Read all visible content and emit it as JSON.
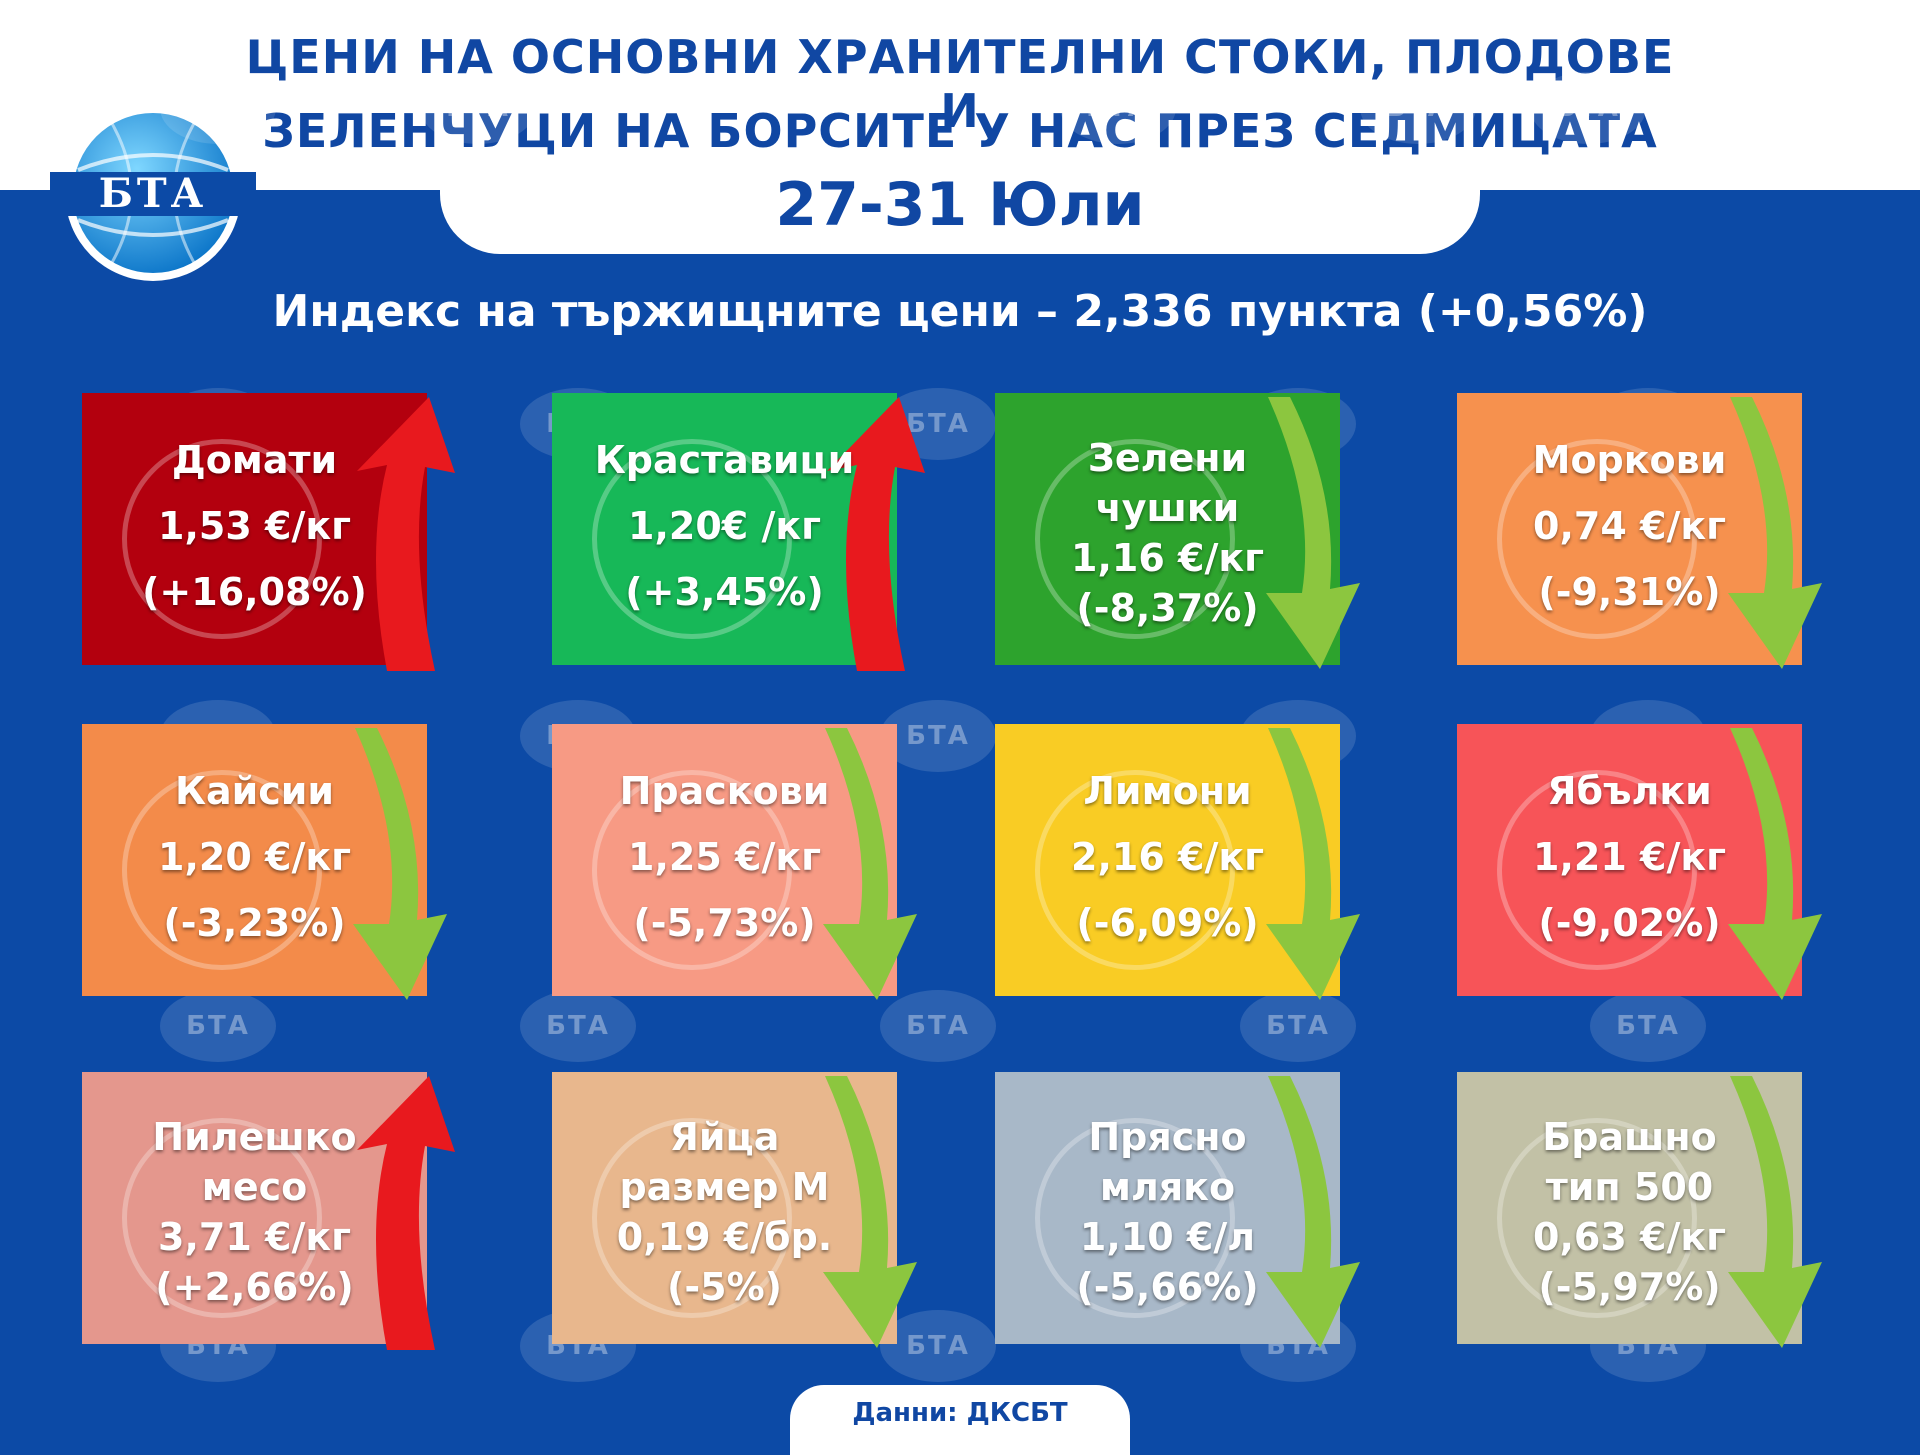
{
  "header": {
    "title_line1": "ЦЕНИ НА ОСНОВНИ ХРАНИТЕЛНИ СТОКИ, ПЛОДОВЕ И",
    "title_line2": "ЗЕЛЕНЧУЦИ НА БОРСИТЕ У НАС ПРЕЗ СЕДМИЦАТА",
    "date": "27-31 Юли",
    "logo_text": "БТА",
    "index": "Индекс на тържищните цени – 2,336 пункта (+0,56%)"
  },
  "watermark": "БТА",
  "source": "Данни: ДКСБТ",
  "colors": {
    "background": "#0c4aa6",
    "title": "#1047a3",
    "arrow_up": "#e8191e",
    "arrow_down": "#8cc63f"
  },
  "cards": [
    {
      "name": "Домати",
      "price": "1,53 €/кг",
      "change": "(+16,08%)",
      "trend": "up",
      "color": "#b3000e",
      "icon": "tomato-icon"
    },
    {
      "name": "Краставици",
      "price": "1,20€ /кг",
      "change": "(+3,45%)",
      "trend": "up",
      "color": "#17b858",
      "icon": "cucumber-icon"
    },
    {
      "name": "Зелени",
      "name2": "чушки",
      "price": "1,16 €/кг",
      "change": "(-8,37%)",
      "trend": "down",
      "color": "#2da32d",
      "icon": "pepper-icon"
    },
    {
      "name": "Моркови",
      "price": "0,74 €/кг",
      "change": "(-9,31%)",
      "trend": "down",
      "color": "#f6914e",
      "icon": "carrot-icon"
    },
    {
      "name": "Кайсии",
      "price": "1,20 €/кг",
      "change": "(-3,23%)",
      "trend": "down",
      "color": "#f38b4a",
      "icon": "apricot-icon"
    },
    {
      "name": "Праскови",
      "price": "1,25 €/кг",
      "change": "(-5,73%)",
      "trend": "down",
      "color": "#f79a84",
      "icon": "peach-icon"
    },
    {
      "name": "Лимони",
      "price": "2,16 €/кг",
      "change": "(-6,09%)",
      "trend": "down",
      "color": "#f9cc24",
      "icon": "lemon-icon"
    },
    {
      "name": "Ябълки",
      "price": "1,21 €/кг",
      "change": "(-9,02%)",
      "trend": "down",
      "color": "#f75458",
      "icon": "apple-icon"
    },
    {
      "name": "Пилешко",
      "name2": "месо",
      "price": "3,71 €/кг",
      "change": "(+2,66%)",
      "trend": "up",
      "color": "#e4978d",
      "icon": "chicken-icon"
    },
    {
      "name": "Яйца",
      "name2": "размер М",
      "price": "0,19 €/бр.",
      "change": "(-5%)",
      "trend": "down",
      "color": "#e8b78d",
      "icon": "egg-icon"
    },
    {
      "name": "Прясно",
      "name2": "мляко",
      "price": "1,10 €/л",
      "change": "(-5,66%)",
      "trend": "down",
      "color": "#a8b8c8",
      "icon": "milk-icon"
    },
    {
      "name": "Брашно",
      "name2": "тип 500",
      "price": "0,63 €/кг",
      "change": "(-5,97%)",
      "trend": "down",
      "color": "#c2c1a6",
      "icon": "flour-icon"
    }
  ]
}
